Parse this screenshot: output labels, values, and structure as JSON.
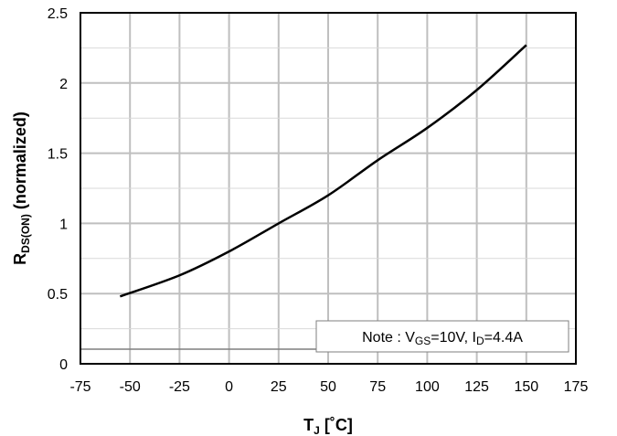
{
  "chart_data": {
    "type": "line",
    "xlabel": {
      "main": "T",
      "sub": "J",
      "rest": " [˚C]"
    },
    "ylabel": {
      "main": "R",
      "sub": "DS(ON)",
      "rest": " (normalized)"
    },
    "xlim": [
      -75,
      175
    ],
    "ylim": [
      0,
      2.5
    ],
    "x_ticks": [
      -75,
      -50,
      -25,
      0,
      25,
      50,
      75,
      100,
      125,
      150,
      175
    ],
    "x_tick_labels": [
      "-75",
      "-50",
      "-25",
      "0",
      "25",
      "50",
      "75",
      "100",
      "125",
      "150",
      "175"
    ],
    "y_ticks": [
      0,
      0.5,
      1,
      1.5,
      2,
      2.5
    ],
    "y_tick_labels": [
      "0",
      "0.5",
      "1",
      "1.5",
      "2",
      "2.5"
    ],
    "grid": true,
    "annotation": {
      "note_prefix": "Note : V",
      "vgs_sub": "GS",
      "vgs_val": "=10V, I",
      "id_sub": "D",
      "id_val": "=4.4A"
    },
    "series": [
      {
        "x": [
          -55,
          -25,
          0,
          25,
          50,
          75,
          100,
          125,
          150
        ],
        "y": [
          0.48,
          0.63,
          0.8,
          1.0,
          1.2,
          1.45,
          1.68,
          1.95,
          2.27
        ]
      }
    ],
    "colors": {
      "line": "#000000",
      "grid": "#bfbfbf",
      "background": "#ffffff"
    }
  }
}
